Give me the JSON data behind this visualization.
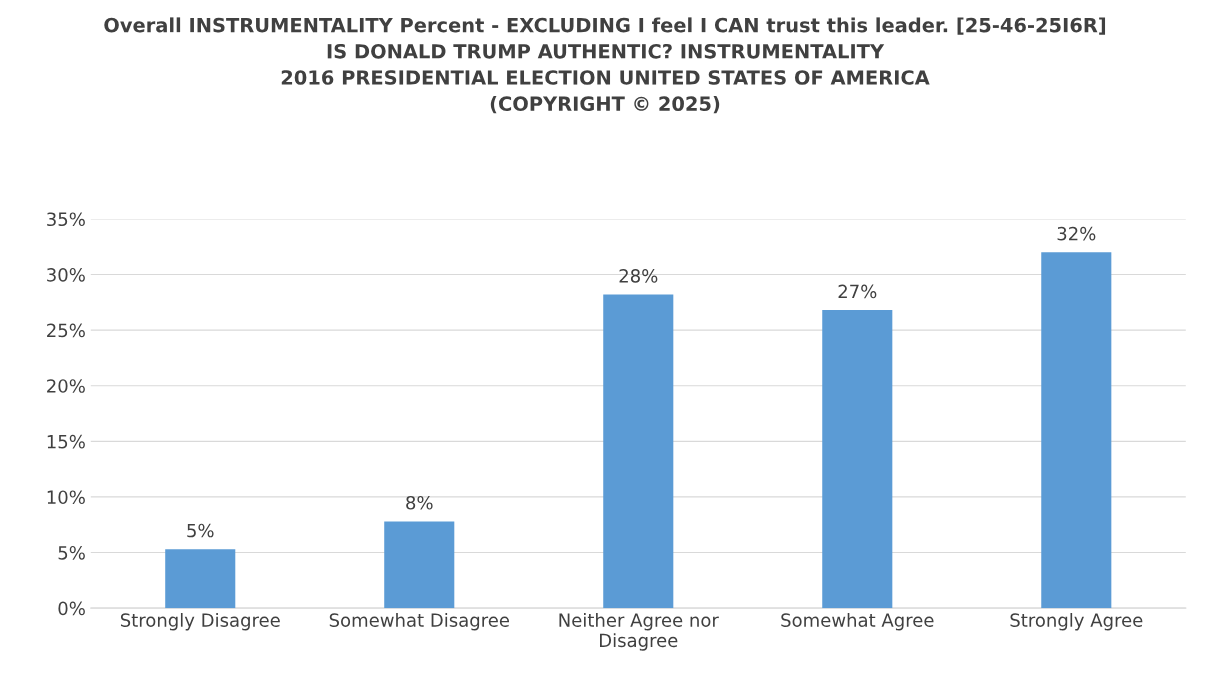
{
  "chart_data": {
    "type": "bar",
    "title": "Overall INSTRUMENTALITY Percent - EXCLUDING I feel I CAN trust this leader. [25-46-25I6R]\nIS DONALD TRUMP AUTHENTIC? INSTRUMENTALITY\n2016 PRESIDENTIAL ELECTION UNITED STATES OF AMERICA\n(COPYRIGHT © 2025)",
    "categories": [
      "Strongly Disagree",
      "Somewhat Disagree",
      "Neither Agree nor\nDisagree",
      "Somewhat Agree",
      "Strongly Agree"
    ],
    "values": [
      5.3,
      7.8,
      28.2,
      26.8,
      32.0
    ],
    "value_labels": [
      "5%",
      "8%",
      "28%",
      "27%",
      "32%"
    ],
    "color": "#5b9bd5",
    "ylim": [
      0,
      35
    ],
    "yticks": [
      {
        "value": 0,
        "label": "0%"
      },
      {
        "value": 5,
        "label": "5%"
      },
      {
        "value": 10,
        "label": "10%"
      },
      {
        "value": 15,
        "label": "15%"
      },
      {
        "value": 20,
        "label": "20%"
      },
      {
        "value": 25,
        "label": "25%"
      },
      {
        "value": 30,
        "label": "30%"
      },
      {
        "value": 35,
        "label": "35%"
      }
    ],
    "grid": "y"
  }
}
